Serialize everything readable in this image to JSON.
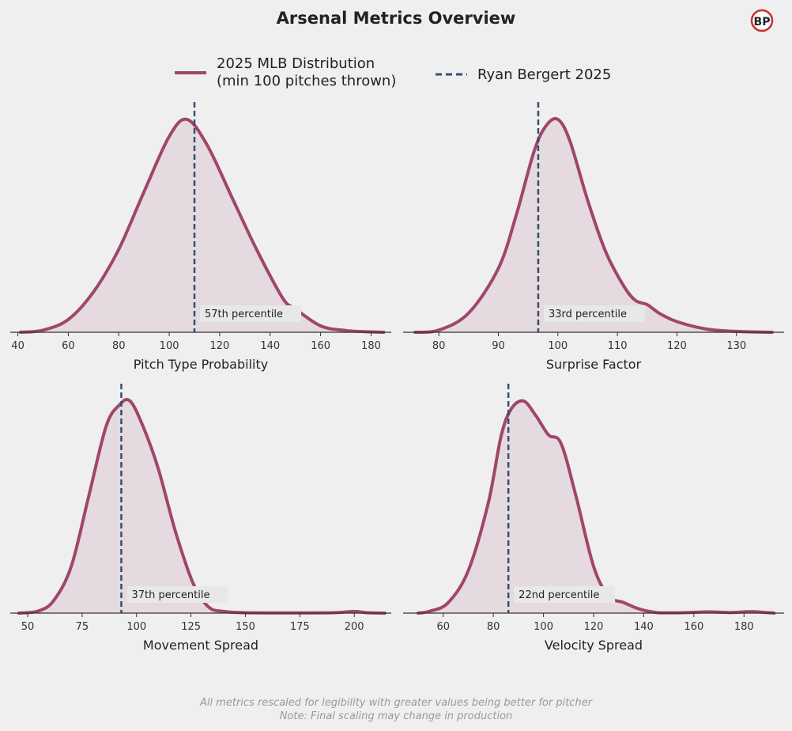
{
  "page": {
    "title": "Arsenal Metrics Overview",
    "logo_text": "BP",
    "footnote_line1": "All metrics rescaled for legibility with greater values being better for pitcher",
    "footnote_line2": "Note: Final scaling may change in production"
  },
  "legend": {
    "dist_label_line1": "2025 MLB Distribution",
    "dist_label_line2": "(min 100 pitches thrown)",
    "player_label": "Ryan Bergert 2025"
  },
  "colors": {
    "background": "#efefef",
    "curve": "#a0466a",
    "fill": "#e4dadf",
    "player_line": "#33506e",
    "axis": "#333333",
    "badge_bg": "#e8e8e8",
    "logo_ring": "#c8312e"
  },
  "chart_data": [
    {
      "type": "area",
      "xlabel": "Pitch Type Probability",
      "xlim": [
        37,
        188
      ],
      "xticks": [
        40,
        60,
        80,
        100,
        120,
        140,
        160,
        180
      ],
      "ylim": [
        0,
        1.1
      ],
      "player_value": 110,
      "percentile_label": "57th percentile",
      "x": [
        41,
        50,
        60,
        70,
        80,
        90,
        100,
        107,
        115,
        125,
        135,
        145,
        150,
        160,
        170,
        180,
        185
      ],
      "y": [
        0.0,
        0.01,
        0.06,
        0.19,
        0.39,
        0.66,
        0.92,
        1.0,
        0.88,
        0.63,
        0.38,
        0.16,
        0.11,
        0.03,
        0.008,
        0.002,
        0.0
      ]
    },
    {
      "type": "area",
      "xlabel": "Surprise Factor",
      "xlim": [
        74,
        138
      ],
      "xticks": [
        80,
        90,
        100,
        110,
        120,
        130
      ],
      "ylim": [
        0,
        1.1
      ],
      "player_value": 96.7,
      "percentile_label": "33rd percentile",
      "x": [
        76,
        80,
        85,
        90,
        93,
        96,
        98,
        100,
        102,
        105,
        108,
        111,
        113,
        115,
        117,
        120,
        125,
        130,
        136
      ],
      "y": [
        0.0,
        0.01,
        0.09,
        0.3,
        0.55,
        0.85,
        0.97,
        1.0,
        0.9,
        0.62,
        0.38,
        0.22,
        0.15,
        0.13,
        0.09,
        0.05,
        0.015,
        0.004,
        0.0
      ]
    },
    {
      "type": "area",
      "xlabel": "Movement Spread",
      "xlim": [
        42,
        217
      ],
      "xticks": [
        50,
        75,
        100,
        125,
        150,
        175,
        200
      ],
      "ylim": [
        0,
        1.1
      ],
      "player_value": 93,
      "percentile_label": "37th percentile",
      "x": [
        46,
        55,
        62,
        70,
        78,
        86,
        92,
        97,
        103,
        110,
        118,
        126,
        133,
        140,
        150,
        170,
        190,
        200,
        206,
        214
      ],
      "y": [
        0.0,
        0.01,
        0.06,
        0.22,
        0.55,
        0.88,
        0.98,
        1.0,
        0.88,
        0.68,
        0.38,
        0.14,
        0.03,
        0.008,
        0.002,
        0.001,
        0.002,
        0.008,
        0.002,
        0.0
      ]
    },
    {
      "type": "area",
      "xlabel": "Velocity Spread",
      "xlim": [
        44,
        196
      ],
      "xticks": [
        60,
        80,
        100,
        120,
        140,
        160,
        180
      ],
      "ylim": [
        0,
        1.1
      ],
      "player_value": 86,
      "percentile_label": "22nd percentile",
      "x": [
        50,
        55,
        62,
        70,
        78,
        83,
        87,
        92,
        97,
        102,
        107,
        113,
        120,
        126,
        132,
        138,
        145,
        155,
        165,
        175,
        183,
        192
      ],
      "y": [
        0.0,
        0.01,
        0.05,
        0.2,
        0.52,
        0.83,
        0.96,
        1.0,
        0.93,
        0.84,
        0.8,
        0.55,
        0.22,
        0.08,
        0.05,
        0.02,
        0.003,
        0.002,
        0.006,
        0.003,
        0.007,
        0.0
      ]
    }
  ]
}
